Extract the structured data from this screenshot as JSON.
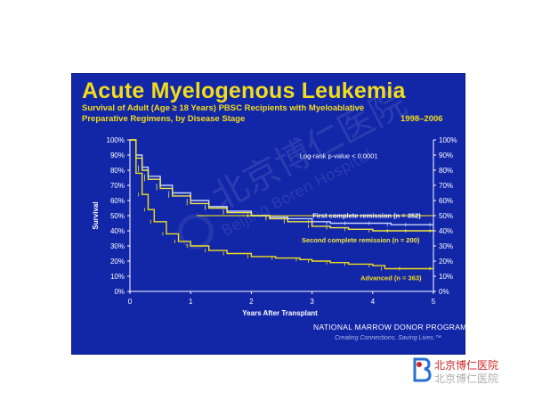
{
  "slide": {
    "title": "Acute Myelogenous Leukemia",
    "subtitle_line1": "Survival of Adult (Age ≥ 18 Years) PBSC Recipients with Myeloablative",
    "subtitle_line2": "Preparative Regimens, by Disease Stage",
    "years": "1998–2006",
    "org": "NATIONAL MARROW DONOR PROGRAM®",
    "tagline": "Creating Connections. Saving Lives.™"
  },
  "watermark": {
    "chinese": "北京博仁医院",
    "english": "Beijing Boren Hospital"
  },
  "footer": {
    "logo_text": "北京博仁医院",
    "wechat_text": "北京博仁医院"
  },
  "colors": {
    "slide_bg": "#1226a8",
    "title": "#f2dd1a",
    "advanced": "#f2dd1a",
    "first_cr": "#c4d4ff",
    "second_cr": "#f5e640",
    "median_band": "#f2dd1a"
  },
  "chart_data": {
    "type": "line",
    "title": "",
    "xlabel": "Years After Transplant",
    "ylabel": "Survival",
    "xlim": [
      0,
      5
    ],
    "ylim": [
      0,
      100
    ],
    "x_ticks": [
      "0",
      "1",
      "2",
      "3",
      "4",
      "5"
    ],
    "y_ticks": [
      "0%",
      "10%",
      "20%",
      "30%",
      "40%",
      "50%",
      "60%",
      "70%",
      "80%",
      "90%",
      "100%"
    ],
    "annotation": "Log-rank p-value < 0.0001",
    "series": [
      {
        "name": "First complete remission (n = 352)",
        "color": "#c4d4ff",
        "x": [
          0,
          0.1,
          0.2,
          0.3,
          0.5,
          0.7,
          1.0,
          1.3,
          1.6,
          2.0,
          2.3,
          2.6,
          3.0,
          3.3,
          3.6,
          4.0,
          4.3,
          4.6,
          5.0
        ],
        "y": [
          100,
          90,
          82,
          76,
          70,
          65,
          60,
          56,
          53,
          50,
          49,
          48,
          46,
          45,
          45,
          45,
          44,
          44,
          44
        ]
      },
      {
        "name": "Second complete remission (n = 200)",
        "color": "#f5e640",
        "x": [
          0,
          0.1,
          0.2,
          0.3,
          0.5,
          0.7,
          1.0,
          1.3,
          1.6,
          2.0,
          2.3,
          2.6,
          3.0,
          3.3,
          3.6,
          4.0,
          4.3,
          4.6,
          5.0
        ],
        "y": [
          100,
          88,
          80,
          74,
          68,
          63,
          58,
          55,
          52,
          50,
          48,
          46,
          43,
          42,
          41,
          40,
          40,
          40,
          40
        ]
      },
      {
        "name": "Advanced (n = 363)",
        "color": "#f2dd1a",
        "x": [
          0,
          0.1,
          0.2,
          0.3,
          0.4,
          0.6,
          0.8,
          1.0,
          1.3,
          1.6,
          2.0,
          2.4,
          2.8,
          3.0,
          3.3,
          3.6,
          4.0,
          4.2,
          4.5,
          5.0
        ],
        "y": [
          100,
          78,
          64,
          54,
          46,
          38,
          33,
          30,
          27,
          25,
          23,
          22,
          21,
          20,
          19,
          18,
          17,
          15,
          15,
          15
        ]
      }
    ]
  }
}
